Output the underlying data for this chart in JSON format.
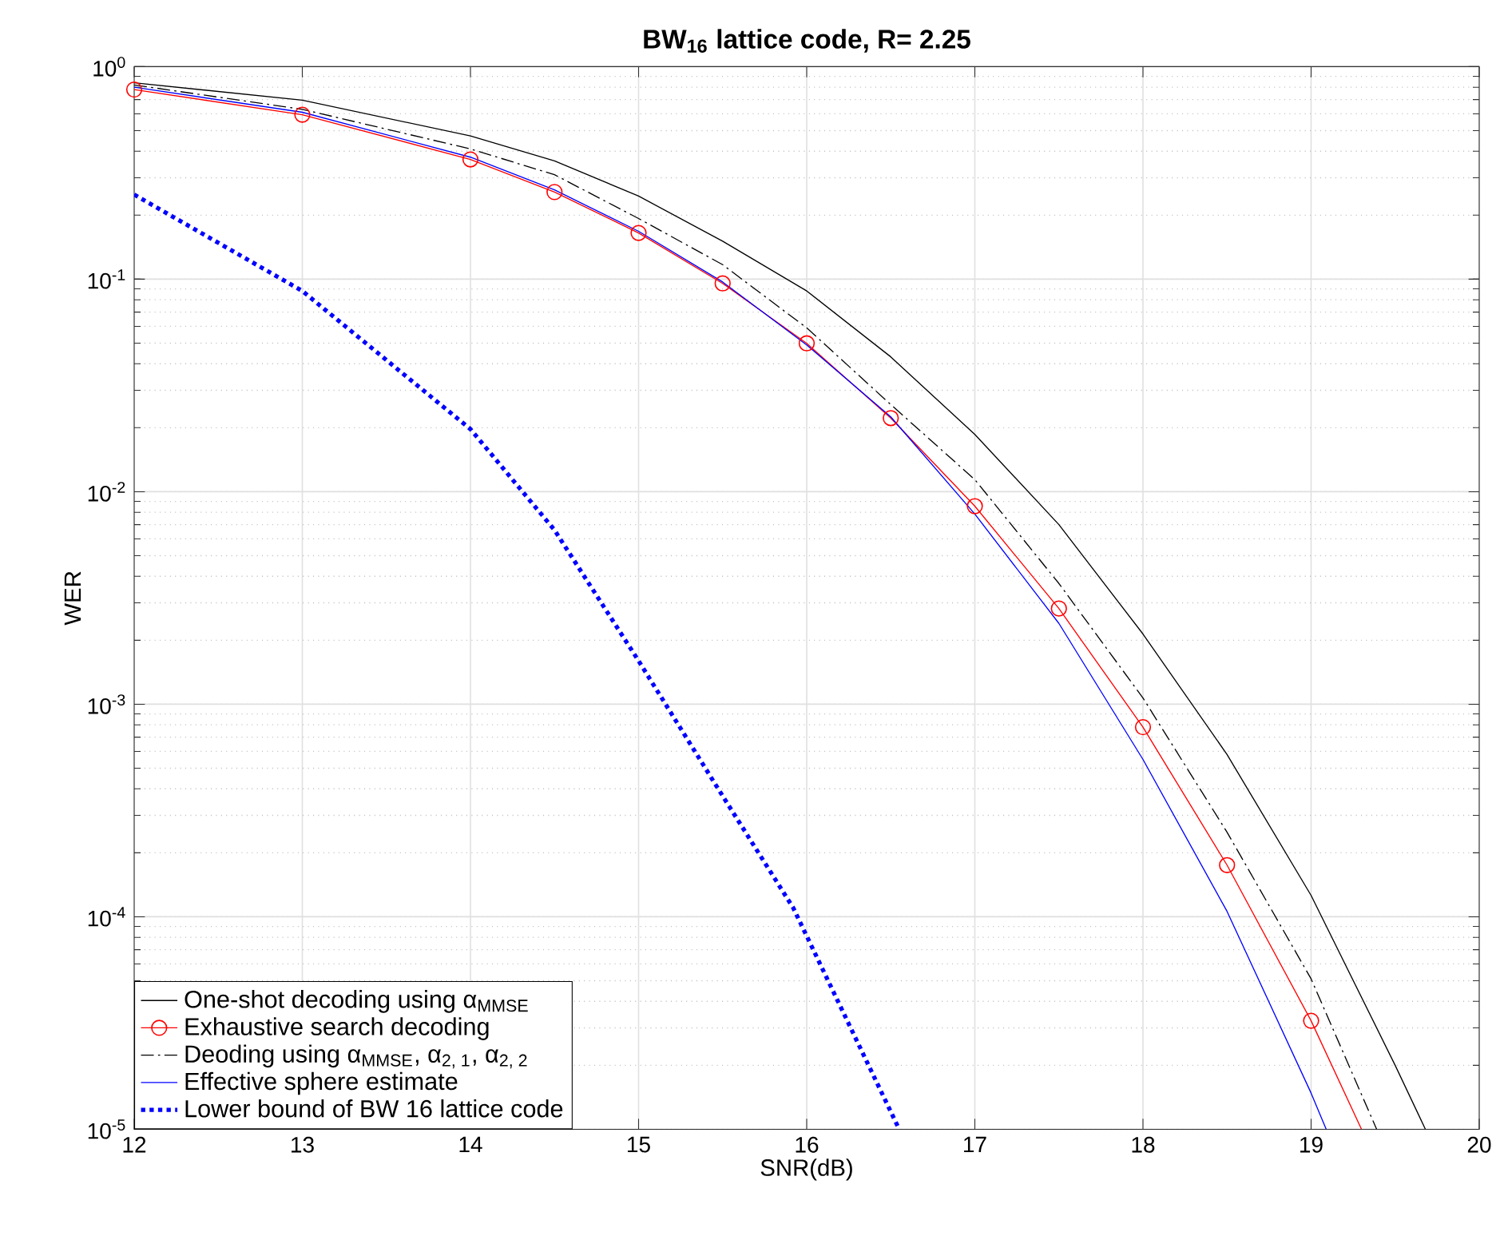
{
  "chart_data": {
    "type": "line",
    "title": "BW$_{16}$ lattice code, R= 2.25",
    "xlabel": "SNR(dB)",
    "ylabel": "WER",
    "log": "y",
    "grid": true,
    "legend": "bottom left",
    "xlim": [
      12,
      20
    ],
    "xticks": [
      12,
      13,
      14,
      15,
      16,
      17,
      18,
      19,
      20
    ],
    "ylim": [
      1e-05,
      1
    ],
    "yticks": [
      {
        "value": 1e-05,
        "label": "10$^{-5}$"
      },
      {
        "value": 0.0001,
        "label": "10$^{-4}$"
      },
      {
        "value": 0.001,
        "label": "10$^{-3}$"
      },
      {
        "value": 0.01,
        "label": "10$^{-2}$"
      },
      {
        "value": 0.1,
        "label": "10$^{-1}$"
      },
      {
        "value": 1,
        "label": "10$^{0}$"
      }
    ],
    "series": [
      {
        "name": "One-shot decoding using α$_{MMSE}$",
        "color": "#000000",
        "line_style": "solid",
        "marker": "none",
        "x": [
          12,
          13,
          14,
          14.5,
          15,
          15.5,
          16,
          16.5,
          17,
          17.5,
          18,
          18.5,
          19,
          19.5,
          19.68
        ],
        "values": [
          0.84,
          0.695,
          0.472,
          0.36,
          0.246,
          0.151,
          0.088,
          0.0431,
          0.0186,
          0.007,
          0.00214,
          0.00058,
          0.000126,
          2e-05,
          1e-05
        ]
      },
      {
        "name": "Exhaustive search decoding",
        "color": "#ff0000",
        "line_style": "solid",
        "marker": "circle",
        "x": [
          12,
          13,
          14,
          14.5,
          15,
          15.5,
          16,
          16.5,
          17,
          17.5,
          18,
          18.5,
          19,
          19.3
        ],
        "values": [
          0.78,
          0.594,
          0.366,
          0.257,
          0.165,
          0.0955,
          0.0499,
          0.0222,
          0.00855,
          0.00282,
          0.00078,
          0.000175,
          3.24e-05,
          1e-05
        ]
      },
      {
        "name": "Deoding using α$_{MMSE}$, α$_{2, 1}$, α$_{2, 2}$",
        "color": "#000000",
        "line_style": "dashdot",
        "marker": "none",
        "x": [
          12,
          13,
          14,
          14.5,
          15,
          15.5,
          16,
          16.5,
          17,
          17.5,
          18,
          18.5,
          19,
          19.39
        ],
        "values": [
          0.82,
          0.63,
          0.41,
          0.31,
          0.193,
          0.117,
          0.059,
          0.0257,
          0.0114,
          0.0037,
          0.00107,
          0.00025,
          5.1e-05,
          1e-05
        ]
      },
      {
        "name": "Effective sphere estimate",
        "color": "#0000ff",
        "line_style": "solid",
        "marker": "none",
        "x": [
          12,
          13,
          14,
          14.5,
          15,
          15.5,
          16,
          16.5,
          17,
          17.5,
          18,
          18.5,
          19,
          19.09
        ],
        "values": [
          0.8,
          0.61,
          0.375,
          0.263,
          0.168,
          0.097,
          0.049,
          0.0225,
          0.00785,
          0.0024,
          0.00055,
          0.000106,
          1.48e-05,
          1e-05
        ]
      },
      {
        "name": "Lower bound of BW 16 lattice code",
        "color": "#0000ff",
        "line_style": "dotted",
        "marker": "none",
        "x": [
          12,
          13,
          14,
          14.5,
          15,
          15.5,
          15.92,
          16.55
        ],
        "values": [
          0.25,
          0.088,
          0.0197,
          0.0066,
          0.0016,
          0.00037,
          0.00011,
          1e-05
        ]
      }
    ]
  }
}
